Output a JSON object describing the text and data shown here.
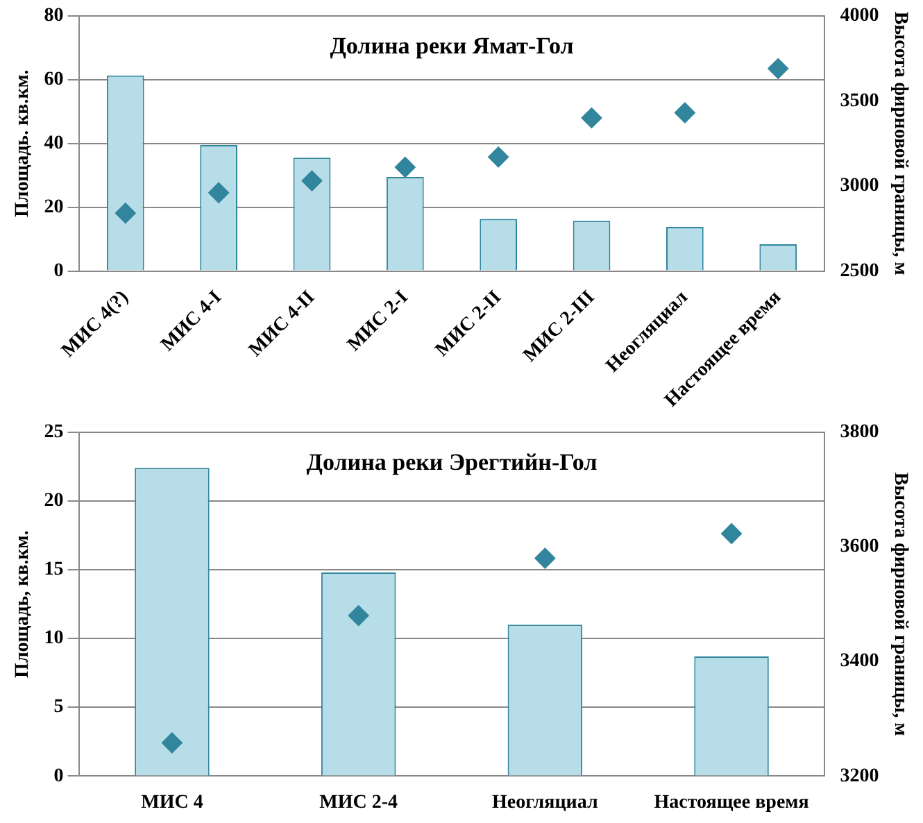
{
  "chart_data": [
    {
      "type": "bar",
      "title": "Долина реки Ямат-Гол",
      "ylabel": "Площадь. кв.км.",
      "y2label": "Высота фирновой границы, м",
      "categories": [
        "МИС 4(?)",
        "МИС 4-I",
        "МИС 4-II",
        "МИС 2-I",
        "МИС 2-II",
        "МИС 2-III",
        "Неогляциал",
        "Настоящее время"
      ],
      "series": [
        {
          "color": "#b7dde8",
          "values": [
            61.3,
            39.5,
            35.5,
            29.5,
            16.3,
            15.7,
            13.8,
            8.4
          ]
        },
        {
          "type": "scatter",
          "axis": "y2",
          "color": "#31859c",
          "marker": "diamond",
          "values": [
            2840,
            2960,
            3030,
            3110,
            3170,
            3400,
            3430,
            3690
          ]
        }
      ],
      "ylim": [
        0,
        80
      ],
      "yticks": [
        0,
        20,
        40,
        60,
        80
      ],
      "y2lim": [
        2500,
        4000
      ],
      "y2ticks": [
        2500,
        3000,
        3500,
        4000
      ],
      "grid": "y",
      "legend": false
    },
    {
      "type": "bar",
      "title": "Долина реки Эрегтийн-Гол",
      "ylabel": "Площадь, кв.км.",
      "y2label": "Высота фирновой границы, м",
      "categories": [
        "МИС 4",
        "МИС 2-4",
        "Неогляциал",
        "Настоящее время"
      ],
      "series": [
        {
          "color": "#b7dde8",
          "values": [
            22.4,
            14.8,
            11.0,
            8.7
          ]
        },
        {
          "type": "scatter",
          "axis": "y2",
          "color": "#31859c",
          "marker": "diamond",
          "values": [
            3258,
            3480,
            3580,
            3623
          ]
        }
      ],
      "ylim": [
        0,
        25
      ],
      "yticks": [
        0,
        5,
        10,
        15,
        20,
        25
      ],
      "y2lim": [
        3200,
        3800
      ],
      "y2ticks": [
        3200,
        3400,
        3600,
        3800
      ],
      "grid": "y",
      "legend": false
    }
  ]
}
